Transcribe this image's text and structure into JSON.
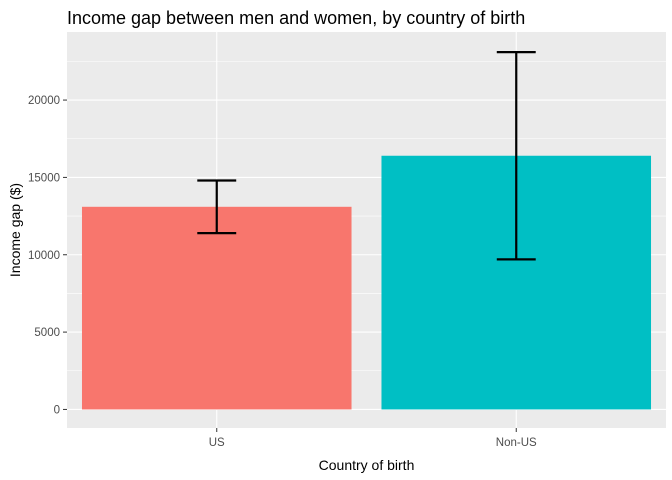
{
  "chart_data": {
    "type": "bar",
    "title": "Income gap between men and women, by country of birth",
    "xlabel": "Country of birth",
    "ylabel": "Income gap ($)",
    "categories": [
      "US",
      "Non-US"
    ],
    "values": [
      13100,
      16400
    ],
    "error_low": [
      11400,
      9700
    ],
    "error_high": [
      14800,
      23100
    ],
    "colors": [
      "#F8766D",
      "#00BFC4"
    ],
    "error_bar_color": "#000000",
    "panel_background": "#EBEBEB",
    "grid_color": "#FFFFFF",
    "grid": true,
    "legend": "none",
    "ylim": [
      -1200,
      24400
    ],
    "y_ticks": [
      0,
      5000,
      10000,
      15000,
      20000
    ],
    "y_tick_labels": [
      "0",
      "5000",
      "10000",
      "15000",
      "20000"
    ]
  }
}
